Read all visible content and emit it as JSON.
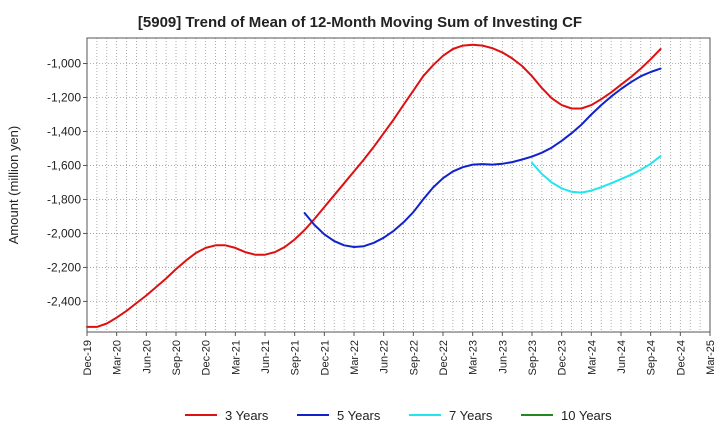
{
  "chart_data": {
    "type": "line",
    "title": "[5909]  Trend of Mean of 12-Month Moving Sum of Investing CF",
    "ylabel": "Amount (million yen)",
    "xlabel": "",
    "x_ticks": [
      "Dec-19",
      "Mar-20",
      "Jun-20",
      "Sep-20",
      "Dec-20",
      "Mar-21",
      "Jun-21",
      "Sep-21",
      "Dec-21",
      "Mar-22",
      "Jun-22",
      "Sep-22",
      "Dec-22",
      "Mar-23",
      "Jun-23",
      "Sep-23",
      "Dec-23",
      "Mar-24",
      "Jun-24",
      "Sep-24",
      "Dec-24",
      "Mar-25"
    ],
    "y_ticks": [
      "-1,000",
      "-1,200",
      "-1,400",
      "-1,600",
      "-1,800",
      "-2,000",
      "-2,200",
      "-2,400"
    ],
    "y_tick_values": [
      -1000,
      -1200,
      -1400,
      -1600,
      -1800,
      -2000,
      -2200,
      -2400
    ],
    "ylim": [
      -2580,
      -850
    ],
    "x_range": [
      "2019-12",
      "2025-03"
    ],
    "grid": true,
    "legend_position": "bottom",
    "series": [
      {
        "name": "3 Years",
        "color": "#dd1111",
        "points": [
          [
            "2019-12",
            -2550
          ],
          [
            "2020-01",
            -2550
          ],
          [
            "2020-02",
            -2530
          ],
          [
            "2020-03",
            -2495
          ],
          [
            "2020-04",
            -2455
          ],
          [
            "2020-05",
            -2410
          ],
          [
            "2020-06",
            -2365
          ],
          [
            "2020-07",
            -2315
          ],
          [
            "2020-08",
            -2265
          ],
          [
            "2020-09",
            -2210
          ],
          [
            "2020-10",
            -2160
          ],
          [
            "2020-11",
            -2115
          ],
          [
            "2020-12",
            -2085
          ],
          [
            "2021-01",
            -2070
          ],
          [
            "2021-02",
            -2070
          ],
          [
            "2021-03",
            -2085
          ],
          [
            "2021-04",
            -2110
          ],
          [
            "2021-05",
            -2125
          ],
          [
            "2021-06",
            -2125
          ],
          [
            "2021-07",
            -2110
          ],
          [
            "2021-08",
            -2080
          ],
          [
            "2021-09",
            -2035
          ],
          [
            "2021-10",
            -1980
          ],
          [
            "2021-11",
            -1915
          ],
          [
            "2021-12",
            -1845
          ],
          [
            "2022-01",
            -1775
          ],
          [
            "2022-02",
            -1705
          ],
          [
            "2022-03",
            -1635
          ],
          [
            "2022-04",
            -1565
          ],
          [
            "2022-05",
            -1490
          ],
          [
            "2022-06",
            -1410
          ],
          [
            "2022-07",
            -1330
          ],
          [
            "2022-08",
            -1245
          ],
          [
            "2022-09",
            -1160
          ],
          [
            "2022-10",
            -1075
          ],
          [
            "2022-11",
            -1010
          ],
          [
            "2022-12",
            -955
          ],
          [
            "2023-01",
            -915
          ],
          [
            "2023-02",
            -895
          ],
          [
            "2023-03",
            -890
          ],
          [
            "2023-04",
            -895
          ],
          [
            "2023-05",
            -910
          ],
          [
            "2023-06",
            -935
          ],
          [
            "2023-07",
            -970
          ],
          [
            "2023-08",
            -1015
          ],
          [
            "2023-09",
            -1075
          ],
          [
            "2023-10",
            -1145
          ],
          [
            "2023-11",
            -1205
          ],
          [
            "2023-12",
            -1245
          ],
          [
            "2024-01",
            -1265
          ],
          [
            "2024-02",
            -1265
          ],
          [
            "2024-03",
            -1245
          ],
          [
            "2024-04",
            -1210
          ],
          [
            "2024-05",
            -1170
          ],
          [
            "2024-06",
            -1125
          ],
          [
            "2024-07",
            -1080
          ],
          [
            "2024-08",
            -1030
          ],
          [
            "2024-09",
            -975
          ],
          [
            "2024-10",
            -915
          ]
        ]
      },
      {
        "name": "5 Years",
        "color": "#1122cc",
        "points": [
          [
            "2021-10",
            -1880
          ],
          [
            "2021-11",
            -1950
          ],
          [
            "2021-12",
            -2005
          ],
          [
            "2022-01",
            -2045
          ],
          [
            "2022-02",
            -2070
          ],
          [
            "2022-03",
            -2080
          ],
          [
            "2022-04",
            -2075
          ],
          [
            "2022-05",
            -2055
          ],
          [
            "2022-06",
            -2025
          ],
          [
            "2022-07",
            -1985
          ],
          [
            "2022-08",
            -1935
          ],
          [
            "2022-09",
            -1875
          ],
          [
            "2022-10",
            -1800
          ],
          [
            "2022-11",
            -1730
          ],
          [
            "2022-12",
            -1675
          ],
          [
            "2023-01",
            -1635
          ],
          [
            "2023-02",
            -1610
          ],
          [
            "2023-03",
            -1595
          ],
          [
            "2023-04",
            -1592
          ],
          [
            "2023-05",
            -1595
          ],
          [
            "2023-06",
            -1590
          ],
          [
            "2023-07",
            -1580
          ],
          [
            "2023-08",
            -1565
          ],
          [
            "2023-09",
            -1548
          ],
          [
            "2023-10",
            -1525
          ],
          [
            "2023-11",
            -1495
          ],
          [
            "2023-12",
            -1455
          ],
          [
            "2024-01",
            -1410
          ],
          [
            "2024-02",
            -1360
          ],
          [
            "2024-03",
            -1300
          ],
          [
            "2024-04",
            -1245
          ],
          [
            "2024-05",
            -1195
          ],
          [
            "2024-06",
            -1150
          ],
          [
            "2024-07",
            -1110
          ],
          [
            "2024-08",
            -1075
          ],
          [
            "2024-09",
            -1050
          ],
          [
            "2024-10",
            -1030
          ]
        ]
      },
      {
        "name": "7 Years",
        "color": "#22e5ee",
        "points": [
          [
            "2023-09",
            -1585
          ],
          [
            "2023-10",
            -1650
          ],
          [
            "2023-11",
            -1700
          ],
          [
            "2023-12",
            -1735
          ],
          [
            "2024-01",
            -1755
          ],
          [
            "2024-02",
            -1760
          ],
          [
            "2024-03",
            -1748
          ],
          [
            "2024-04",
            -1728
          ],
          [
            "2024-05",
            -1705
          ],
          [
            "2024-06",
            -1680
          ],
          [
            "2024-07",
            -1655
          ],
          [
            "2024-08",
            -1625
          ],
          [
            "2024-09",
            -1590
          ],
          [
            "2024-10",
            -1545
          ]
        ]
      },
      {
        "name": "10 Years",
        "color": "#228822",
        "points": []
      }
    ]
  }
}
